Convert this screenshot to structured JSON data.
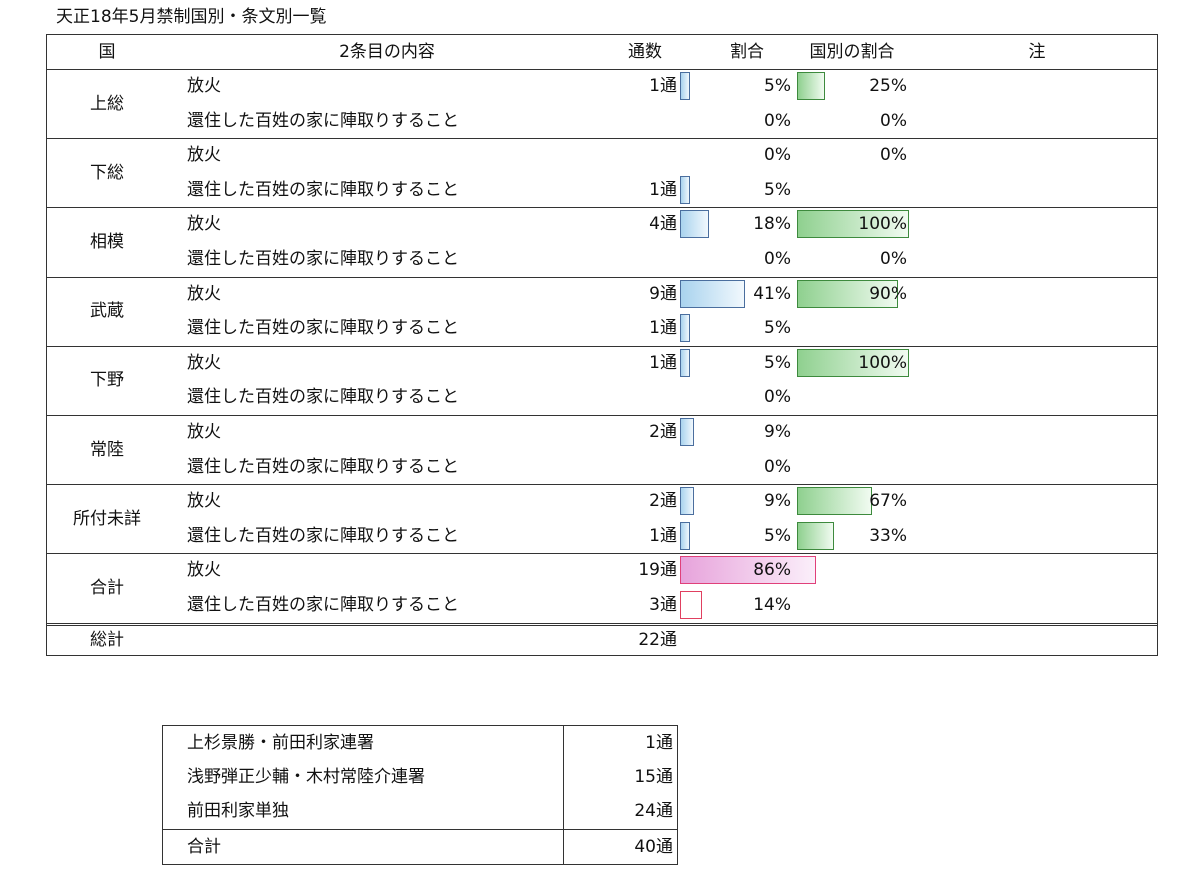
{
  "caption": "天正18年5月禁制国別・条文別一覧",
  "header": {
    "province": "国",
    "content": "2条目の内容",
    "count": "通数",
    "ratio": "割合",
    "province_ratio": "国別の割合",
    "note": "注"
  },
  "rows": [
    {
      "province": "上総",
      "items": [
        {
          "text": "放火",
          "count": "1通",
          "count_value": 1,
          "pct": "5%",
          "pct_value": 5,
          "ppct": "25%",
          "ppct_value": 25
        },
        {
          "text": "還住した百姓の家に陣取りすること",
          "count": "",
          "count_value": 0,
          "pct": "0%",
          "pct_value": 0,
          "ppct": "0%",
          "ppct_value": 0
        }
      ]
    },
    {
      "province": "下総",
      "items": [
        {
          "text": "放火",
          "count": "",
          "count_value": 0,
          "pct": "0%",
          "pct_value": 0,
          "ppct": "0%",
          "ppct_value": 0
        },
        {
          "text": "還住した百姓の家に陣取りすること",
          "count": "1通",
          "count_value": 1,
          "pct": "5%",
          "pct_value": 5,
          "ppct": "",
          "ppct_value": 0
        }
      ]
    },
    {
      "province": "相模",
      "items": [
        {
          "text": "放火",
          "count": "4通",
          "count_value": 4,
          "pct": "18%",
          "pct_value": 18,
          "ppct": "100%",
          "ppct_value": 100
        },
        {
          "text": "還住した百姓の家に陣取りすること",
          "count": "",
          "count_value": 0,
          "pct": "0%",
          "pct_value": 0,
          "ppct": "0%",
          "ppct_value": 0
        }
      ]
    },
    {
      "province": "武蔵",
      "items": [
        {
          "text": "放火",
          "count": "9通",
          "count_value": 9,
          "pct": "41%",
          "pct_value": 41,
          "ppct": "90%",
          "ppct_value": 90
        },
        {
          "text": "還住した百姓の家に陣取りすること",
          "count": "1通",
          "count_value": 1,
          "pct": "5%",
          "pct_value": 5,
          "ppct": "",
          "ppct_value": 0
        }
      ]
    },
    {
      "province": "下野",
      "items": [
        {
          "text": "放火",
          "count": "1通",
          "count_value": 1,
          "pct": "5%",
          "pct_value": 5,
          "ppct": "100%",
          "ppct_value": 100
        },
        {
          "text": "還住した百姓の家に陣取りすること",
          "count": "",
          "count_value": 0,
          "pct": "0%",
          "pct_value": 0,
          "ppct": "",
          "ppct_value": 0
        }
      ]
    },
    {
      "province": "常陸",
      "items": [
        {
          "text": "放火",
          "count": "2通",
          "count_value": 2,
          "pct": "9%",
          "pct_value": 9,
          "ppct": "",
          "ppct_value": 0
        },
        {
          "text": "還住した百姓の家に陣取りすること",
          "count": "",
          "count_value": 0,
          "pct": "0%",
          "pct_value": 0,
          "ppct": "",
          "ppct_value": 0
        }
      ]
    },
    {
      "province": "所付未詳",
      "items": [
        {
          "text": "放火",
          "count": "2通",
          "count_value": 2,
          "pct": "9%",
          "pct_value": 9,
          "ppct": "67%",
          "ppct_value": 67
        },
        {
          "text": "還住した百姓の家に陣取りすること",
          "count": "1通",
          "count_value": 1,
          "pct": "5%",
          "pct_value": 5,
          "ppct": "33%",
          "ppct_value": 33
        }
      ]
    }
  ],
  "total": {
    "label": "合計",
    "items": [
      {
        "text": "放火",
        "count": "19通",
        "count_value": 19,
        "pct": "86%",
        "pct_value": 86
      },
      {
        "text": "還住した百姓の家に陣取りすること",
        "count": "3通",
        "count_value": 3,
        "pct": "14%",
        "pct_value": 14
      }
    ]
  },
  "grand_total": {
    "label": "総計",
    "count": "22通"
  },
  "summary": {
    "rows": [
      {
        "label": "上杉景勝・前田利家連署",
        "count": "1通"
      },
      {
        "label": "浅野弾正少輔・木村常陸介連署",
        "count": "15通"
      },
      {
        "label": "前田利家単独",
        "count": "24通"
      }
    ],
    "total": {
      "label": "合計",
      "count": "40通"
    }
  },
  "colors": {
    "count_bar": "#a9d3ee",
    "province_bar": "#8fd08f",
    "total_bar": "#e7a3db"
  }
}
